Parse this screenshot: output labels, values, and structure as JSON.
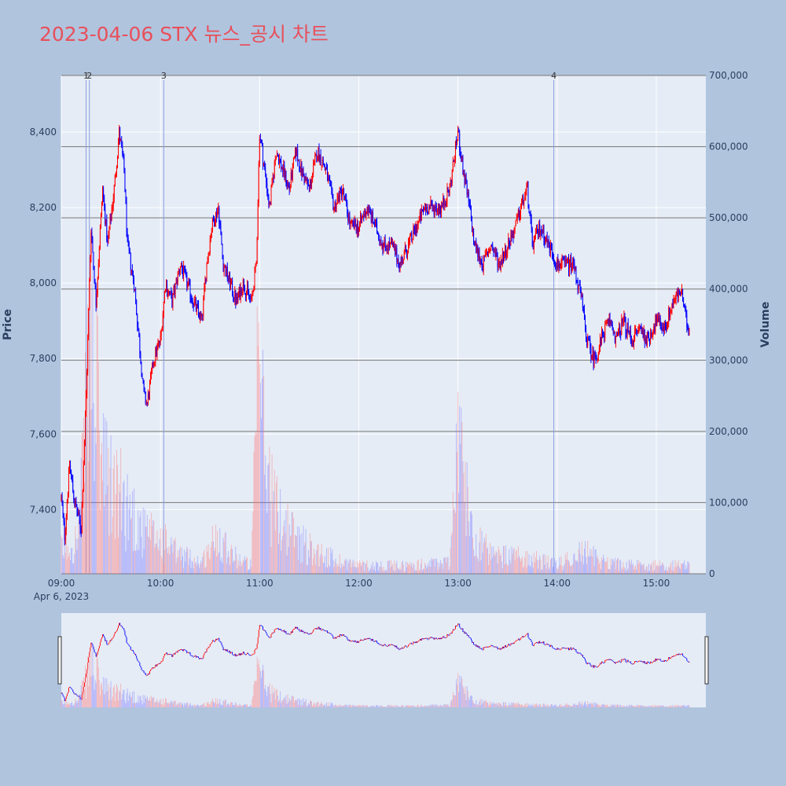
{
  "title": "2023-04-06 STX 뉴스_공시 차트",
  "colors": {
    "page_bg": "#b0c4de",
    "plot_bg": "#e5ecf6",
    "up": "#ff0000",
    "down": "#0000ff",
    "title": "#e8505b",
    "grid": "#ffffff",
    "volume_grid": "#777777",
    "event_line": "#8c9ee0"
  },
  "chart_data": {
    "type": "candlestick",
    "x_start": "09:00",
    "x_end": "15:30",
    "x_date_label": "Apr 6, 2023",
    "x_ticks": [
      "09:00",
      "10:00",
      "11:00",
      "12:00",
      "13:00",
      "14:00",
      "15:00"
    ],
    "y_label": "Price",
    "y_ticks": [
      "7,400",
      "7,600",
      "7,800",
      "8,000",
      "8,200",
      "8,400"
    ],
    "ylim": [
      7230,
      8550
    ],
    "y2_label": "Volume",
    "y2_ticks": [
      "0",
      "100,000",
      "200,000",
      "300,000",
      "400,000",
      "500,000",
      "600,000",
      "700,000"
    ],
    "y2lim": [
      0,
      700000
    ],
    "events": [
      {
        "label": "1",
        "time": "09:15"
      },
      {
        "label": "2",
        "time": "09:17"
      },
      {
        "label": "3",
        "time": "10:02"
      },
      {
        "label": "4",
        "time": "13:58"
      }
    ],
    "price_path": [
      [
        "09:00",
        7430
      ],
      [
        "09:02",
        7330
      ],
      [
        "09:05",
        7520
      ],
      [
        "09:08",
        7420
      ],
      [
        "09:12",
        7350
      ],
      [
        "09:15",
        7700
      ],
      [
        "09:18",
        8150
      ],
      [
        "09:21",
        7950
      ],
      [
        "09:25",
        8250
      ],
      [
        "09:28",
        8100
      ],
      [
        "09:32",
        8250
      ],
      [
        "09:35",
        8400
      ],
      [
        "09:38",
        8300
      ],
      [
        "09:40",
        8100
      ],
      [
        "09:44",
        8000
      ],
      [
        "09:47",
        7850
      ],
      [
        "09:50",
        7700
      ],
      [
        "09:52",
        7680
      ],
      [
        "09:56",
        7800
      ],
      [
        "10:00",
        7850
      ],
      [
        "10:03",
        8000
      ],
      [
        "10:07",
        7950
      ],
      [
        "10:12",
        8050
      ],
      [
        "10:16",
        8000
      ],
      [
        "10:20",
        7950
      ],
      [
        "10:25",
        7900
      ],
      [
        "10:28",
        8050
      ],
      [
        "10:31",
        8150
      ],
      [
        "10:35",
        8200
      ],
      [
        "10:38",
        8050
      ],
      [
        "10:42",
        8000
      ],
      [
        "10:46",
        7950
      ],
      [
        "10:50",
        8000
      ],
      [
        "10:55",
        7950
      ],
      [
        "10:58",
        8050
      ],
      [
        "11:00",
        8400
      ],
      [
        "11:03",
        8300
      ],
      [
        "11:06",
        8200
      ],
      [
        "11:10",
        8350
      ],
      [
        "11:14",
        8300
      ],
      [
        "11:18",
        8250
      ],
      [
        "11:22",
        8350
      ],
      [
        "11:25",
        8300
      ],
      [
        "11:30",
        8250
      ],
      [
        "11:35",
        8350
      ],
      [
        "11:40",
        8300
      ],
      [
        "11:45",
        8200
      ],
      [
        "11:50",
        8250
      ],
      [
        "11:55",
        8150
      ],
      [
        "12:00",
        8150
      ],
      [
        "12:05",
        8200
      ],
      [
        "12:10",
        8150
      ],
      [
        "12:15",
        8100
      ],
      [
        "12:20",
        8100
      ],
      [
        "12:25",
        8050
      ],
      [
        "12:30",
        8100
      ],
      [
        "12:35",
        8150
      ],
      [
        "12:40",
        8200
      ],
      [
        "12:45",
        8200
      ],
      [
        "12:50",
        8200
      ],
      [
        "12:55",
        8250
      ],
      [
        "13:00",
        8400
      ],
      [
        "13:03",
        8300
      ],
      [
        "13:07",
        8200
      ],
      [
        "13:10",
        8100
      ],
      [
        "13:15",
        8050
      ],
      [
        "13:20",
        8100
      ],
      [
        "13:25",
        8050
      ],
      [
        "13:30",
        8100
      ],
      [
        "13:35",
        8150
      ],
      [
        "13:38",
        8200
      ],
      [
        "13:42",
        8250
      ],
      [
        "13:45",
        8100
      ],
      [
        "13:50",
        8150
      ],
      [
        "13:55",
        8100
      ],
      [
        "14:00",
        8050
      ],
      [
        "14:05",
        8050
      ],
      [
        "14:10",
        8050
      ],
      [
        "14:15",
        7950
      ],
      [
        "14:18",
        7850
      ],
      [
        "14:22",
        7800
      ],
      [
        "14:25",
        7820
      ],
      [
        "14:28",
        7870
      ],
      [
        "14:32",
        7900
      ],
      [
        "14:36",
        7850
      ],
      [
        "14:40",
        7900
      ],
      [
        "14:45",
        7850
      ],
      [
        "14:50",
        7880
      ],
      [
        "14:55",
        7850
      ],
      [
        "15:00",
        7900
      ],
      [
        "15:05",
        7880
      ],
      [
        "15:10",
        7950
      ],
      [
        "15:15",
        7980
      ],
      [
        "15:18",
        7900
      ],
      [
        "15:20",
        7870
      ]
    ],
    "volume_profile": [
      [
        "09:00",
        40000
      ],
      [
        "09:10",
        60000
      ],
      [
        "09:15",
        250000
      ],
      [
        "09:18",
        400000
      ],
      [
        "09:25",
        180000
      ],
      [
        "09:30",
        150000
      ],
      [
        "09:40",
        120000
      ],
      [
        "09:50",
        70000
      ],
      [
        "10:00",
        60000
      ],
      [
        "10:10",
        35000
      ],
      [
        "10:25",
        20000
      ],
      [
        "10:35",
        70000
      ],
      [
        "10:45",
        30000
      ],
      [
        "10:55",
        15000
      ],
      [
        "11:00",
        400000
      ],
      [
        "11:03",
        200000
      ],
      [
        "11:10",
        110000
      ],
      [
        "11:20",
        70000
      ],
      [
        "11:30",
        45000
      ],
      [
        "11:45",
        25000
      ],
      [
        "12:00",
        15000
      ],
      [
        "12:30",
        14000
      ],
      [
        "12:55",
        20000
      ],
      [
        "13:00",
        270000
      ],
      [
        "13:03",
        160000
      ],
      [
        "13:10",
        70000
      ],
      [
        "13:20",
        30000
      ],
      [
        "13:40",
        30000
      ],
      [
        "14:00",
        15000
      ],
      [
        "14:15",
        40000
      ],
      [
        "14:25",
        25000
      ],
      [
        "14:40",
        15000
      ],
      [
        "15:00",
        15000
      ],
      [
        "15:20",
        15000
      ]
    ]
  }
}
